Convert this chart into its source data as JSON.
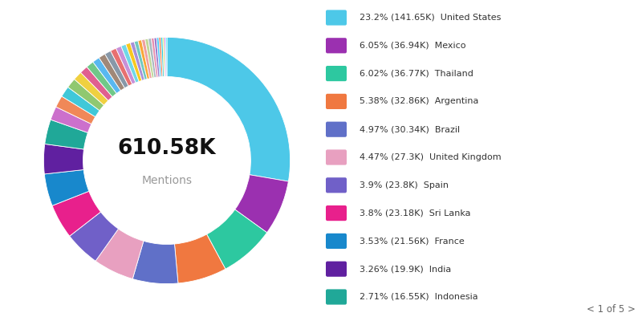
{
  "center_text": "610.58K",
  "center_subtext": "Mentions",
  "background_color": "#ffffff",
  "legend_entries": [
    {
      "label": "23.2% (141.65K)  United States",
      "color": "#4DC8E8",
      "pct": 23.2
    },
    {
      "label": "6.05% (36.94K)  Mexico",
      "color": "#9B30B0",
      "pct": 6.05
    },
    {
      "label": "6.02% (36.77K)  Thailand",
      "color": "#2DC8A0",
      "pct": 6.02
    },
    {
      "label": "5.38% (32.86K)  Argentina",
      "color": "#F07840",
      "pct": 5.38
    },
    {
      "label": "4.97% (30.34K)  Brazil",
      "color": "#6070C8",
      "pct": 4.97
    },
    {
      "label": "4.47% (27.3K)  United Kingdom",
      "color": "#E8A0C0",
      "pct": 4.47
    },
    {
      "label": "3.9% (23.8K)  Spain",
      "color": "#7060C8",
      "pct": 3.9
    },
    {
      "label": "3.8% (23.18K)  Sri Lanka",
      "color": "#E8208C",
      "pct": 3.8
    },
    {
      "label": "3.53% (21.56K)  France",
      "color": "#1888CC",
      "pct": 3.53
    },
    {
      "label": "3.26% (19.9K)  India",
      "color": "#6020A0",
      "pct": 3.26
    },
    {
      "label": "2.71% (16.55K)  Indonesia",
      "color": "#20A898",
      "pct": 2.71
    }
  ],
  "other_slices": [
    {
      "color": "#CC70CC",
      "pct": 1.5
    },
    {
      "color": "#F08858",
      "pct": 1.3
    },
    {
      "color": "#40C8D8",
      "pct": 1.2
    },
    {
      "color": "#90C870",
      "pct": 1.1
    },
    {
      "color": "#F0D040",
      "pct": 1.0
    },
    {
      "color": "#E06090",
      "pct": 0.9
    },
    {
      "color": "#70C888",
      "pct": 0.85
    },
    {
      "color": "#58B8F0",
      "pct": 0.8
    },
    {
      "color": "#A08878",
      "pct": 0.75
    },
    {
      "color": "#8898A8",
      "pct": 0.7
    },
    {
      "color": "#E87070",
      "pct": 0.65
    },
    {
      "color": "#C890D8",
      "pct": 0.6
    },
    {
      "color": "#70D8E8",
      "pct": 0.55
    },
    {
      "color": "#F8C820",
      "pct": 0.5
    },
    {
      "color": "#A890D8",
      "pct": 0.45
    },
    {
      "color": "#70C8C0",
      "pct": 0.42
    },
    {
      "color": "#F8A838",
      "pct": 0.4
    },
    {
      "color": "#F0A0A0",
      "pct": 0.38
    },
    {
      "color": "#C0D898",
      "pct": 0.35
    },
    {
      "color": "#A8B8C0",
      "pct": 0.33
    },
    {
      "color": "#E890B0",
      "pct": 0.3
    },
    {
      "color": "#9878CC",
      "pct": 0.28
    },
    {
      "color": "#50C8F8",
      "pct": 0.25
    },
    {
      "color": "#F07848",
      "pct": 0.22
    },
    {
      "color": "#28C8D8",
      "pct": 0.2
    },
    {
      "color": "#D8E068",
      "pct": 0.18
    },
    {
      "color": "#D840F8",
      "pct": 0.15
    },
    {
      "color": "#00E0F8",
      "pct": 0.12
    }
  ]
}
